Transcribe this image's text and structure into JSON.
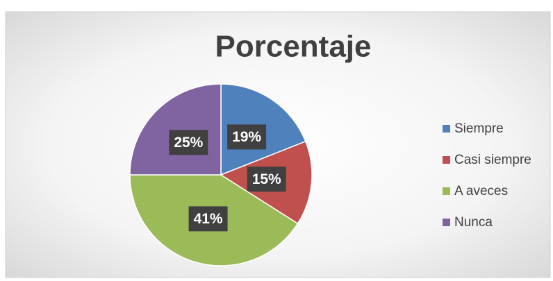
{
  "chart_data": {
    "type": "pie",
    "title": "Porcentaje",
    "categories": [
      "Siempre",
      "Casi siempre",
      "A aveces",
      "Nunca"
    ],
    "values": [
      19,
      15,
      41,
      25
    ],
    "value_labels": [
      "19%",
      "15%",
      "41%",
      "25%"
    ],
    "colors": [
      "#4f81bd",
      "#c0504d",
      "#9bbb59",
      "#8064a2"
    ],
    "legend": "right"
  }
}
